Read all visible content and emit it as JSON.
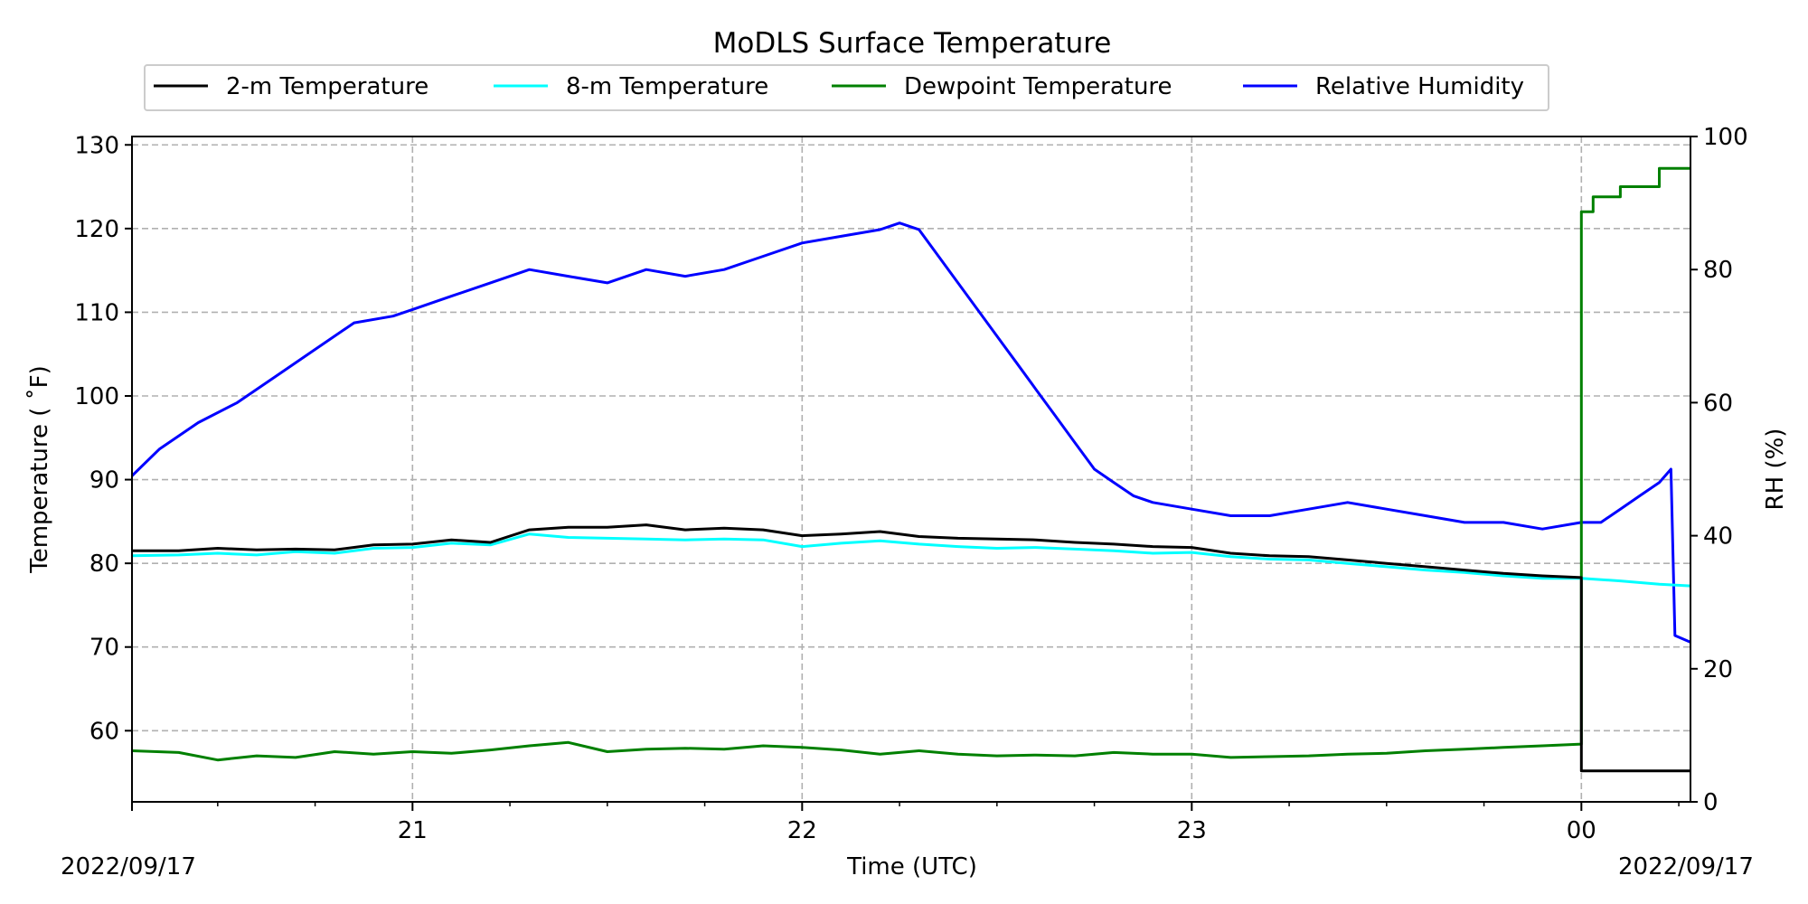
{
  "chart_data": {
    "type": "line",
    "title": "MoDLS Surface Temperature",
    "xlabel": "Time (UTC)",
    "ylabel": "Temperature ($^\\circ$F)",
    "ylabel_display": "Temperature ( ˚F)",
    "y2label": "RH (%)",
    "x_date_left": "2022/09/17",
    "x_date_right": "2022/09/17",
    "grid": true,
    "legend_placement": "top-center",
    "x_ticks": [
      {
        "label": "21",
        "hour": 21
      },
      {
        "label": "22",
        "hour": 22
      },
      {
        "label": "23",
        "hour": 23
      },
      {
        "label": "00",
        "hour": 24
      }
    ],
    "xlim_hours": [
      20.28,
      24.28
    ],
    "ylim_temp": [
      51.5,
      131
    ],
    "ylim_rh": [
      0,
      100
    ],
    "y_ticks_temp": [
      60,
      70,
      80,
      90,
      100,
      110,
      120,
      130
    ],
    "y_ticks_rh": [
      0,
      20,
      40,
      60,
      80,
      100
    ],
    "series": [
      {
        "name": "2-m Temperature",
        "color": "#000000",
        "axis": "left",
        "points": [
          [
            20.28,
            81.5
          ],
          [
            20.4,
            81.5
          ],
          [
            20.5,
            81.8
          ],
          [
            20.6,
            81.6
          ],
          [
            20.7,
            81.7
          ],
          [
            20.8,
            81.6
          ],
          [
            20.9,
            82.2
          ],
          [
            21.0,
            82.3
          ],
          [
            21.1,
            82.8
          ],
          [
            21.2,
            82.5
          ],
          [
            21.3,
            84.0
          ],
          [
            21.4,
            84.3
          ],
          [
            21.5,
            84.3
          ],
          [
            21.6,
            84.6
          ],
          [
            21.7,
            84.0
          ],
          [
            21.8,
            84.2
          ],
          [
            21.9,
            84.0
          ],
          [
            22.0,
            83.3
          ],
          [
            22.1,
            83.5
          ],
          [
            22.2,
            83.8
          ],
          [
            22.3,
            83.2
          ],
          [
            22.4,
            83.0
          ],
          [
            22.5,
            82.9
          ],
          [
            22.6,
            82.8
          ],
          [
            22.7,
            82.5
          ],
          [
            22.8,
            82.3
          ],
          [
            22.9,
            82.0
          ],
          [
            23.0,
            81.9
          ],
          [
            23.1,
            81.2
          ],
          [
            23.2,
            80.9
          ],
          [
            23.3,
            80.8
          ],
          [
            23.4,
            80.4
          ],
          [
            23.5,
            80.0
          ],
          [
            23.6,
            79.6
          ],
          [
            23.7,
            79.2
          ],
          [
            23.8,
            78.8
          ],
          [
            23.9,
            78.5
          ],
          [
            24.0,
            78.3
          ],
          [
            24.0,
            55.2
          ],
          [
            24.28,
            55.2
          ]
        ]
      },
      {
        "name": "8-m Temperature",
        "color": "#00ffff",
        "axis": "left",
        "points": [
          [
            20.28,
            80.9
          ],
          [
            20.4,
            81.0
          ],
          [
            20.5,
            81.2
          ],
          [
            20.6,
            81.0
          ],
          [
            20.7,
            81.4
          ],
          [
            20.8,
            81.2
          ],
          [
            20.9,
            81.8
          ],
          [
            21.0,
            81.9
          ],
          [
            21.1,
            82.4
          ],
          [
            21.2,
            82.2
          ],
          [
            21.3,
            83.5
          ],
          [
            21.4,
            83.1
          ],
          [
            21.5,
            83.0
          ],
          [
            21.6,
            82.9
          ],
          [
            21.7,
            82.8
          ],
          [
            21.8,
            82.9
          ],
          [
            21.9,
            82.8
          ],
          [
            22.0,
            82.0
          ],
          [
            22.1,
            82.4
          ],
          [
            22.2,
            82.7
          ],
          [
            22.3,
            82.3
          ],
          [
            22.4,
            82.0
          ],
          [
            22.5,
            81.8
          ],
          [
            22.6,
            81.9
          ],
          [
            22.7,
            81.7
          ],
          [
            22.8,
            81.5
          ],
          [
            22.9,
            81.2
          ],
          [
            23.0,
            81.3
          ],
          [
            23.1,
            80.8
          ],
          [
            23.2,
            80.5
          ],
          [
            23.3,
            80.4
          ],
          [
            23.4,
            80.0
          ],
          [
            23.5,
            79.6
          ],
          [
            23.6,
            79.2
          ],
          [
            23.7,
            78.9
          ],
          [
            23.8,
            78.5
          ],
          [
            23.9,
            78.2
          ],
          [
            24.0,
            78.2
          ],
          [
            24.1,
            77.9
          ],
          [
            24.2,
            77.5
          ],
          [
            24.28,
            77.3
          ]
        ]
      },
      {
        "name": "Dewpoint Temperature",
        "color": "#008000",
        "axis": "left",
        "points": [
          [
            20.28,
            57.6
          ],
          [
            20.4,
            57.4
          ],
          [
            20.5,
            56.5
          ],
          [
            20.6,
            57.0
          ],
          [
            20.7,
            56.8
          ],
          [
            20.8,
            57.5
          ],
          [
            20.9,
            57.2
          ],
          [
            21.0,
            57.5
          ],
          [
            21.1,
            57.3
          ],
          [
            21.2,
            57.7
          ],
          [
            21.3,
            58.2
          ],
          [
            21.4,
            58.6
          ],
          [
            21.5,
            57.5
          ],
          [
            21.6,
            57.8
          ],
          [
            21.7,
            57.9
          ],
          [
            21.8,
            57.8
          ],
          [
            21.9,
            58.2
          ],
          [
            22.0,
            58.0
          ],
          [
            22.1,
            57.7
          ],
          [
            22.2,
            57.2
          ],
          [
            22.3,
            57.6
          ],
          [
            22.4,
            57.2
          ],
          [
            22.5,
            57.0
          ],
          [
            22.6,
            57.1
          ],
          [
            22.7,
            57.0
          ],
          [
            22.8,
            57.4
          ],
          [
            22.9,
            57.2
          ],
          [
            23.0,
            57.2
          ],
          [
            23.1,
            56.8
          ],
          [
            23.2,
            56.9
          ],
          [
            23.3,
            57.0
          ],
          [
            23.4,
            57.2
          ],
          [
            23.5,
            57.3
          ],
          [
            23.6,
            57.6
          ],
          [
            23.7,
            57.8
          ],
          [
            23.8,
            58.0
          ],
          [
            23.9,
            58.2
          ],
          [
            24.0,
            58.4
          ],
          [
            24.0,
            122.0
          ],
          [
            24.03,
            122.0
          ],
          [
            24.03,
            123.8
          ],
          [
            24.1,
            123.8
          ],
          [
            24.1,
            125.0
          ],
          [
            24.2,
            125.0
          ],
          [
            24.2,
            127.2
          ],
          [
            24.28,
            127.2
          ]
        ]
      },
      {
        "name": "Relative Humidity",
        "color": "#0000ff",
        "axis": "right",
        "points": [
          [
            20.28,
            49
          ],
          [
            20.35,
            53
          ],
          [
            20.45,
            57
          ],
          [
            20.55,
            60
          ],
          [
            20.65,
            64
          ],
          [
            20.75,
            68
          ],
          [
            20.85,
            72
          ],
          [
            20.95,
            73
          ],
          [
            21.0,
            74
          ],
          [
            21.1,
            76
          ],
          [
            21.2,
            78
          ],
          [
            21.3,
            80
          ],
          [
            21.4,
            79
          ],
          [
            21.5,
            78
          ],
          [
            21.6,
            80
          ],
          [
            21.7,
            79
          ],
          [
            21.8,
            80
          ],
          [
            21.9,
            82
          ],
          [
            22.0,
            84
          ],
          [
            22.1,
            85
          ],
          [
            22.2,
            86
          ],
          [
            22.25,
            87
          ],
          [
            22.3,
            86
          ],
          [
            22.35,
            82
          ],
          [
            22.4,
            78
          ],
          [
            22.45,
            74
          ],
          [
            22.5,
            70
          ],
          [
            22.55,
            66
          ],
          [
            22.6,
            62
          ],
          [
            22.65,
            58
          ],
          [
            22.7,
            54
          ],
          [
            22.75,
            50
          ],
          [
            22.8,
            48
          ],
          [
            22.85,
            46
          ],
          [
            22.9,
            45
          ],
          [
            23.0,
            44
          ],
          [
            23.1,
            43
          ],
          [
            23.2,
            43
          ],
          [
            23.3,
            44
          ],
          [
            23.4,
            45
          ],
          [
            23.5,
            44
          ],
          [
            23.6,
            43
          ],
          [
            23.7,
            42
          ],
          [
            23.8,
            42
          ],
          [
            23.9,
            41
          ],
          [
            24.0,
            42
          ],
          [
            24.05,
            42
          ],
          [
            24.1,
            44
          ],
          [
            24.15,
            46
          ],
          [
            24.2,
            48
          ],
          [
            24.23,
            50
          ],
          [
            24.24,
            25
          ],
          [
            24.28,
            24
          ]
        ]
      }
    ]
  }
}
